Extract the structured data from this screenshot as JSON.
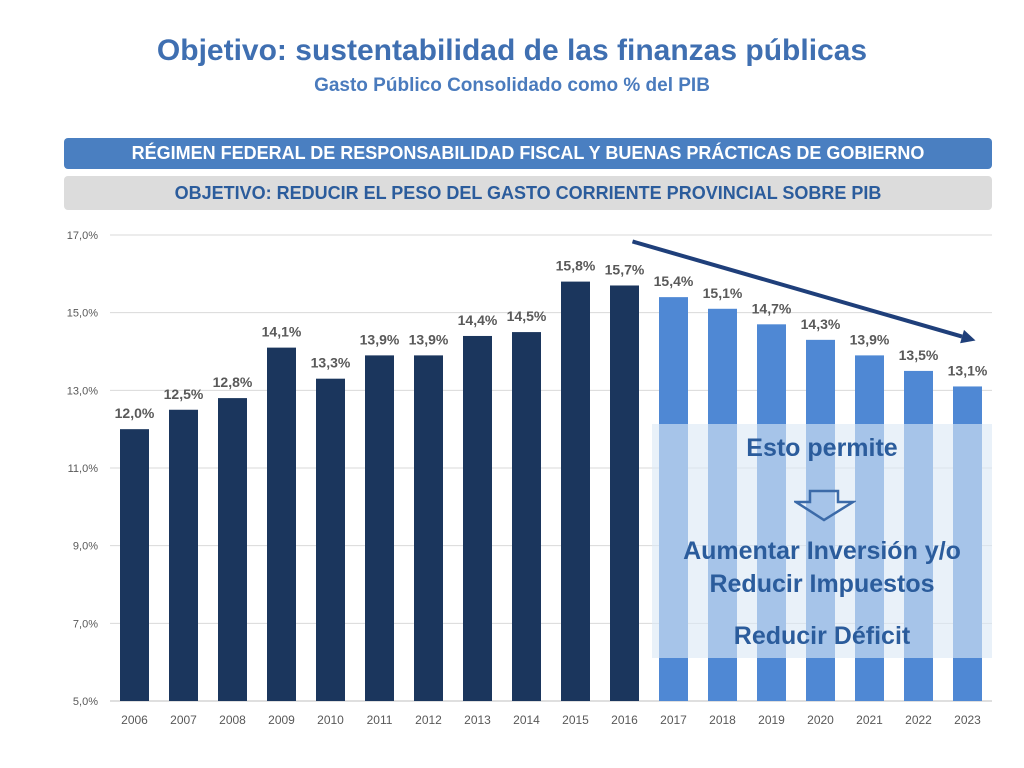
{
  "header": {
    "title": "Objetivo: sustentabilidad de las finanzas públicas",
    "subtitle": "Gasto Público Consolidado como % del PIB"
  },
  "banners": {
    "regime": "RÉGIMEN FEDERAL DE RESPONSABILIDAD FISCAL Y BUENAS PRÁCTICAS DE GOBIERNO",
    "objective": "OBJETIVO: REDUCIR EL PESO DEL GASTO CORRIENTE PROVINCIAL SOBRE PIB"
  },
  "colors": {
    "historical_bar": "#1b365d",
    "projected_bar": "#4f88d4",
    "trend_arrow": "#1f3f7a"
  },
  "chart_data": {
    "type": "bar",
    "title": "Gasto Público Consolidado como % del PIB",
    "xlabel": "",
    "ylabel": "",
    "ylim": [
      5.0,
      17.0
    ],
    "yticks": [
      5.0,
      7.0,
      9.0,
      11.0,
      13.0,
      15.0,
      17.0
    ],
    "ytick_labels": [
      "5,0%",
      "7,0%",
      "9,0%",
      "11,0%",
      "13,0%",
      "15,0%",
      "17,0%"
    ],
    "grid": true,
    "categories": [
      "2006",
      "2007",
      "2008",
      "2009",
      "2010",
      "2011",
      "2012",
      "2013",
      "2014",
      "2015",
      "2016",
      "2017",
      "2018",
      "2019",
      "2020",
      "2021",
      "2022",
      "2023"
    ],
    "values": [
      12.0,
      12.5,
      12.8,
      14.1,
      13.3,
      13.9,
      13.9,
      14.4,
      14.5,
      15.8,
      15.7,
      15.4,
      15.1,
      14.7,
      14.3,
      13.9,
      13.5,
      13.1
    ],
    "labels": [
      "12,0%",
      "12,5%",
      "12,8%",
      "14,1%",
      "13,3%",
      "13,9%",
      "13,9%",
      "14,4%",
      "14,5%",
      "15,8%",
      "15,7%",
      "15,4%",
      "15,1%",
      "14,7%",
      "14,3%",
      "13,9%",
      "13,5%",
      "13,1%"
    ],
    "projected_from_index": 11,
    "annotations": {
      "trend": "downward arrow from 2016 to 2023",
      "box_title": "Esto permite",
      "box_line1": "Aumentar Inversión y/o",
      "box_line2": "Reducir Impuestos",
      "box_line3": "Reducir Déficit"
    }
  }
}
